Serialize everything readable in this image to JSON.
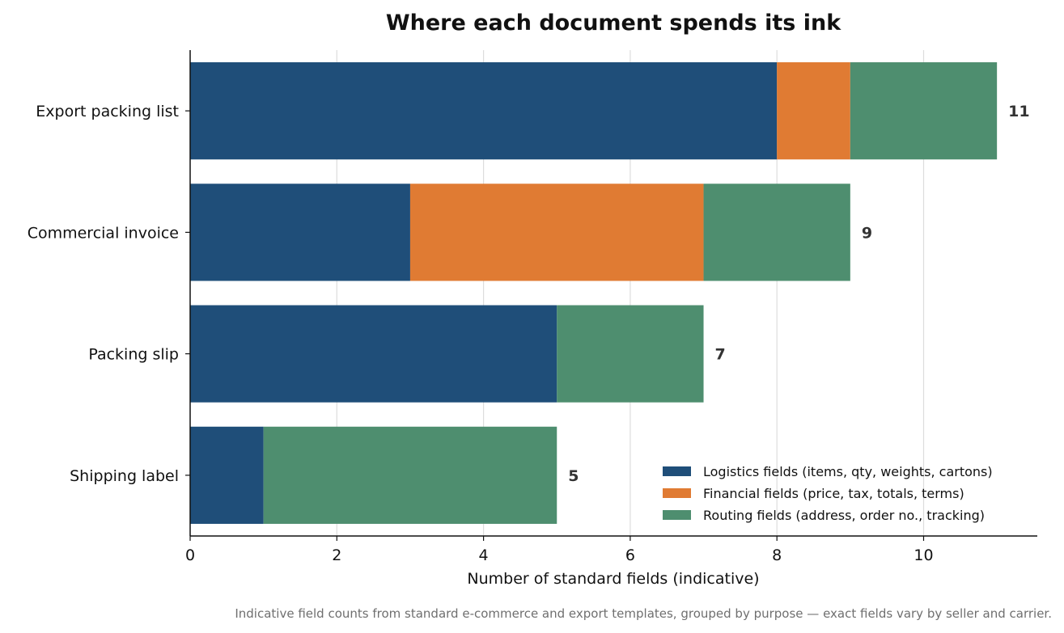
{
  "chart_data": {
    "type": "bar",
    "orientation": "horizontal",
    "stacked": true,
    "title": "Where each document spends its ink",
    "xlabel": "Number of standard fields (indicative)",
    "ylabel": "",
    "xlim": [
      0,
      11.55
    ],
    "xticks": [
      0,
      2,
      4,
      6,
      8,
      10
    ],
    "grid": "vertical",
    "legend_position": "bottom-right",
    "categories": [
      "Export packing list",
      "Commercial invoice",
      "Packing slip",
      "Shipping label"
    ],
    "series": [
      {
        "name": "Logistics fields (items, qty, weights, cartons)",
        "color": "#1f4e79",
        "values": [
          8,
          3,
          5,
          1
        ]
      },
      {
        "name": "Financial fields (price, tax, totals, terms)",
        "color": "#e07b33",
        "values": [
          1,
          4,
          0,
          0
        ]
      },
      {
        "name": "Routing fields (address, order no., tracking)",
        "color": "#4e8e6f",
        "values": [
          2,
          2,
          2,
          4
        ]
      }
    ],
    "totals": [
      "11",
      "9",
      "7",
      "5"
    ],
    "caption": "Indicative field counts from standard e-commerce and export templates, grouped by purpose — exact fields vary by seller and carrier."
  }
}
